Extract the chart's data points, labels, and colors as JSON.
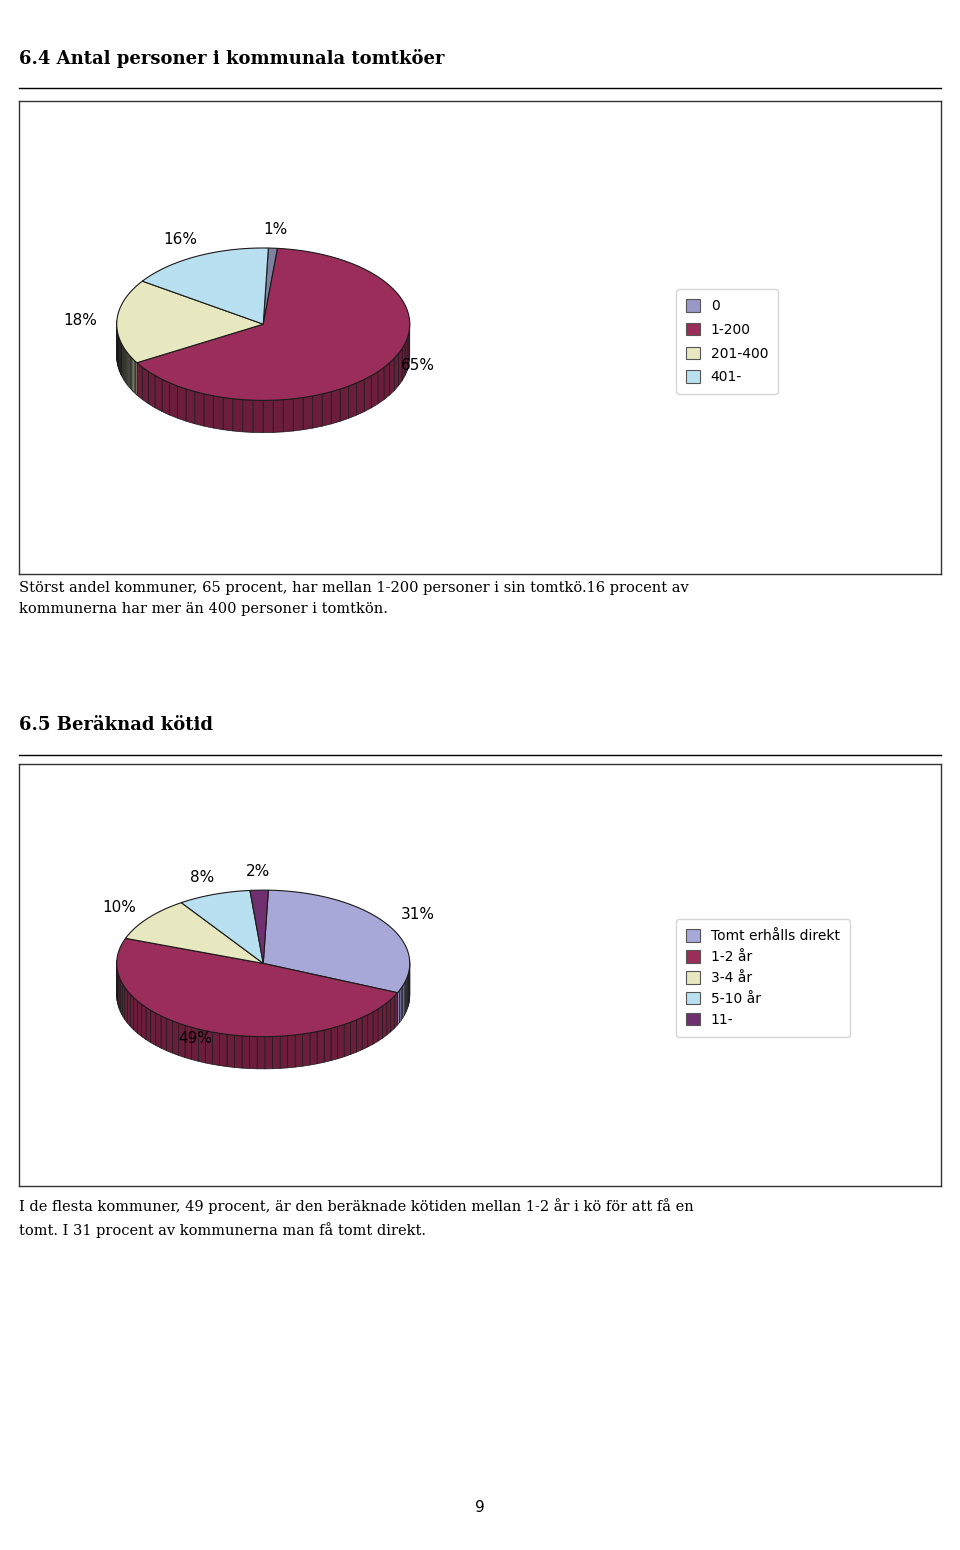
{
  "title1": "6.4 Antal personer i kommunala tomtköer",
  "title2": "6.5 Beräknad kötid",
  "pie1_values": [
    1,
    65,
    18,
    16
  ],
  "pie1_labels": [
    "1%",
    "65%",
    "18%",
    "16%"
  ],
  "pie1_colors": [
    "#8080A0",
    "#9B2D5A",
    "#E8E8C0",
    "#B8E0F0"
  ],
  "pie1_side_colors": [
    "#606080",
    "#6B1D3A",
    "#C8C8A0",
    "#98C0D0"
  ],
  "pie1_legend_labels": [
    "0",
    "1-200",
    "201-400",
    "401-"
  ],
  "pie1_legend_colors": [
    "#9898C8",
    "#9B2D5A",
    "#E8E8C0",
    "#B8E0F0"
  ],
  "pie1_startangle": 88,
  "pie2_values": [
    31,
    49,
    10,
    8,
    2
  ],
  "pie2_labels": [
    "31%",
    "49%",
    "10%",
    "8%",
    "2%"
  ],
  "pie2_colors": [
    "#A8A8D8",
    "#9B2D5A",
    "#E8E8C0",
    "#B8E0F0",
    "#703070"
  ],
  "pie2_side_colors": [
    "#8888B8",
    "#6B1D3A",
    "#C8C8A0",
    "#98C0D0",
    "#502050"
  ],
  "pie2_legend_labels": [
    "Tomt erhålls direkt",
    "1-2 år",
    "3-4 år",
    "5-10 år",
    "11-"
  ],
  "pie2_legend_colors": [
    "#A8A8D8",
    "#9B2D5A",
    "#E8E8C0",
    "#B8E0F0",
    "#703070"
  ],
  "pie2_startangle": 88,
  "text1": "Störst andel kommuner, 65 procent, har mellan 1-200 personer i sin tomtkö.16 procent av\nkommunerna har mer än 400 personer i tomtkön.",
  "text2": "I de flesta kommuner, 49 procent, är den beräknade kötiden mellan 1-2 år i kö för att få en\ntomt. I 31 procent av kommunerna man få tomt direkt.",
  "page_number": "9",
  "bg_color": "#FFFFFF"
}
